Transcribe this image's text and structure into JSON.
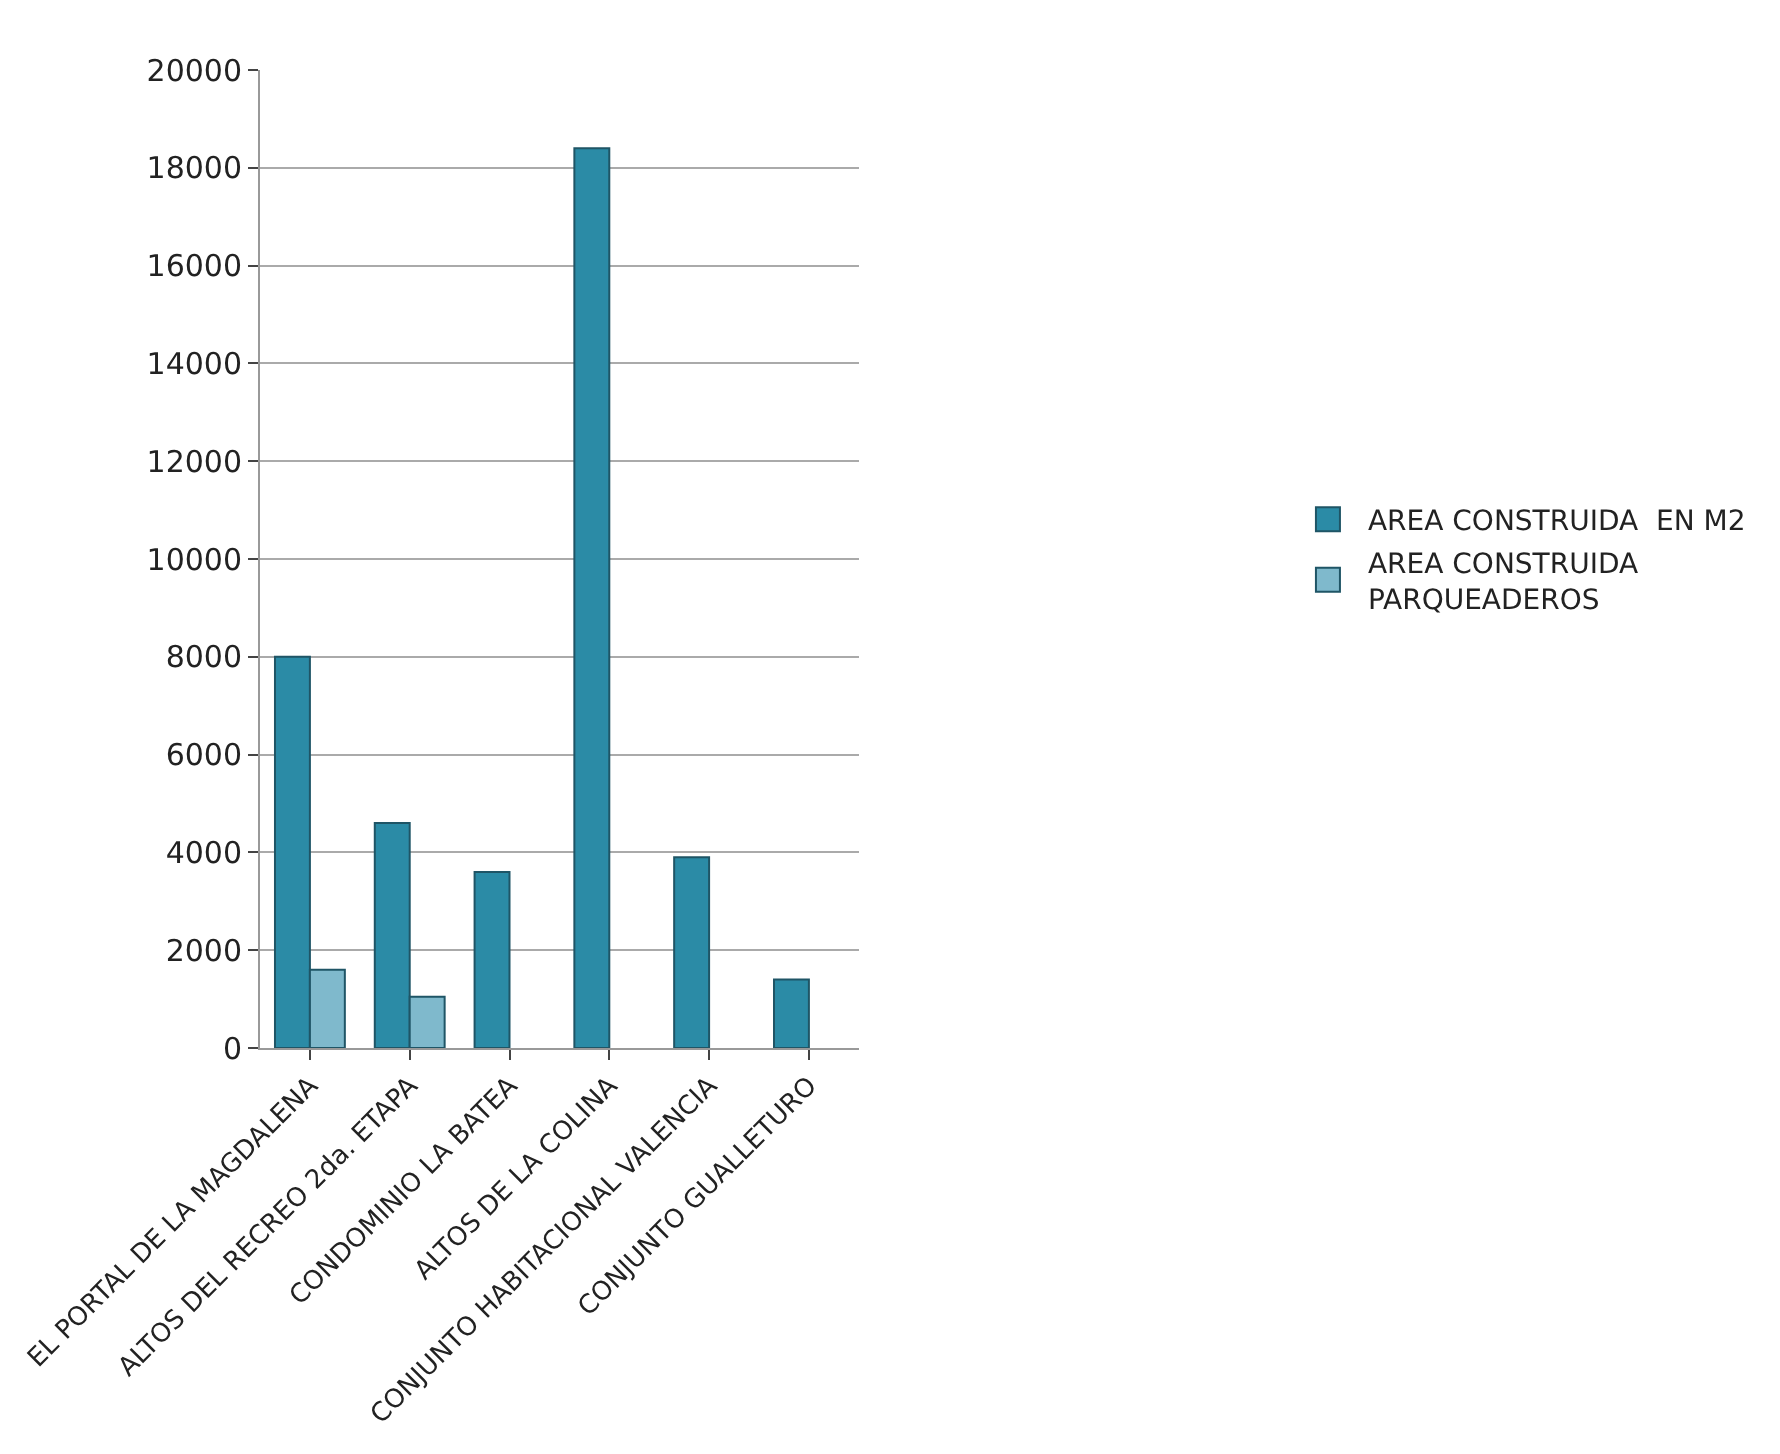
{
  "chart_data": {
    "type": "bar",
    "categories": [
      "EL PORTAL DE LA MAGDALENA",
      "ALTOS DEL RECREO 2da. ETAPA",
      "CONDOMINIO LA BATEA",
      "ALTOS DE LA COLINA",
      "CONJUNTO HABITACIONAL VALENCIA",
      "CONJUNTO GUALLETURO"
    ],
    "series": [
      {
        "name": "AREA CONSTRUIDA  EN M2",
        "color": "#2b8ba6",
        "values": [
          8000,
          4600,
          3600,
          18400,
          3900,
          1400
        ]
      },
      {
        "name": "AREA CONSTRUIDA PARQUEADEROS",
        "color": "#7fb9cc",
        "values": [
          1600,
          1050,
          null,
          null,
          null,
          null
        ]
      }
    ],
    "ylim": [
      0,
      20000
    ],
    "yticks": [
      0,
      2000,
      4000,
      6000,
      8000,
      10000,
      12000,
      14000,
      16000,
      18000,
      20000
    ],
    "grid": "y",
    "legend": "right"
  }
}
